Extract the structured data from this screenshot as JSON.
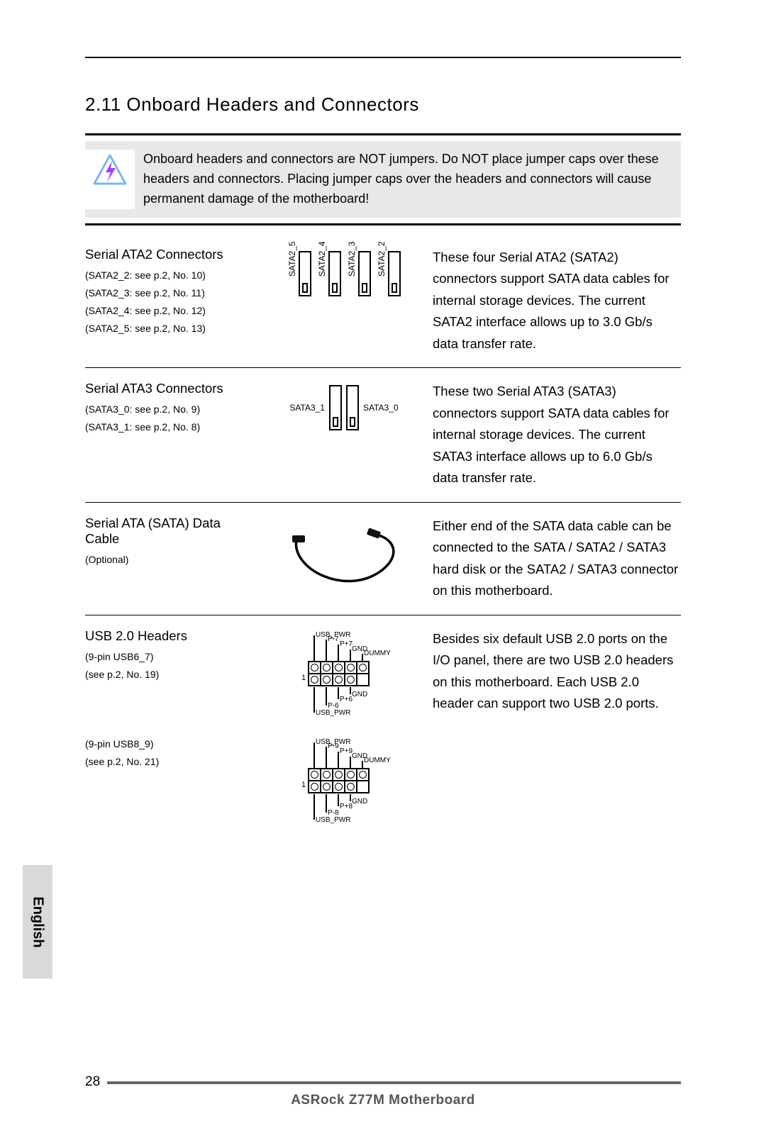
{
  "section_title": "2.11 Onboard Headers and Connectors",
  "warning_text": "Onboard headers and connectors are NOT jumpers. Do NOT place jumper caps over these headers and connectors. Placing jumper caps over the headers and connectors will cause permanent damage of the motherboard!",
  "lang_tab": "English",
  "page_number": "28",
  "footer_title": "ASRock  Z77M  Motherboard",
  "warning_icon_colors": {
    "triangle": "#7bb8e8",
    "bolt": "#a040ff"
  },
  "rows": [
    {
      "left_title": "Serial ATA2 Connectors",
      "left_subs": [
        "(SATA2_2: see p.2,  No. 10)",
        "(SATA2_3: see p.2,  No. 11)",
        "(SATA2_4: see p.2,  No. 12)",
        "(SATA2_5: see p.2,  No. 13)"
      ],
      "diagram": {
        "type": "sata2",
        "ports": [
          "SATA2_5",
          "SATA2_4",
          "SATA2_3",
          "SATA2_2"
        ]
      },
      "right": "These four Serial ATA2 (SATA2) connectors support SATA data cables for internal storage devices. The current SATA2 interface allows up to 3.0 Gb/s data transfer rate."
    },
    {
      "left_title": "Serial ATA3 Connectors",
      "left_subs": [
        "(SATA3_0: see p.2,  No. 9)",
        "(SATA3_1: see p.2,  No. 8)"
      ],
      "diagram": {
        "type": "sata3",
        "left_label": "SATA3_1",
        "right_label": "SATA3_0"
      },
      "right": "These two Serial ATA3 (SATA3) connectors support SATA data cables for internal storage devices. The current SATA3 interface allows up to 6.0 Gb/s data transfer rate."
    },
    {
      "left_title": "Serial ATA (SATA) Data Cable",
      "left_subs": [
        "(Optional)"
      ],
      "diagram": {
        "type": "cable"
      },
      "right": "Either end of the SATA data cable can be connected to the SATA / SATA2 / SATA3 hard disk or the SATA2 / SATA3 connector on this motherboard."
    },
    {
      "left_title": "USB 2.0 Headers",
      "left_subs": [
        "(9-pin USB6_7)",
        "(see p.2,  No. 19)"
      ],
      "diagram": {
        "type": "usb",
        "top_labels": [
          "USB_PWR",
          "P-7",
          "P+7",
          "GND",
          "DUMMY"
        ],
        "bottom_labels": [
          "USB_PWR",
          "P-6",
          "P+6",
          "GND"
        ],
        "pin1_marker": "1"
      },
      "right": "Besides six default USB 2.0 ports on the I/O panel, there are two USB 2.0 headers on this motherboard. Each USB 2.0 header can support two USB 2.0 ports."
    },
    {
      "left_title": "",
      "left_subs": [
        "(9-pin USB8_9)",
        "(see p.2,  No. 21)"
      ],
      "diagram": {
        "type": "usb",
        "top_labels": [
          "USB_PWR",
          "P-9",
          "P+9",
          "GND",
          "DUMMY"
        ],
        "bottom_labels": [
          "USB_PWR",
          "P-8",
          "P+8",
          "GND"
        ],
        "pin1_marker": "1"
      },
      "right": ""
    }
  ]
}
